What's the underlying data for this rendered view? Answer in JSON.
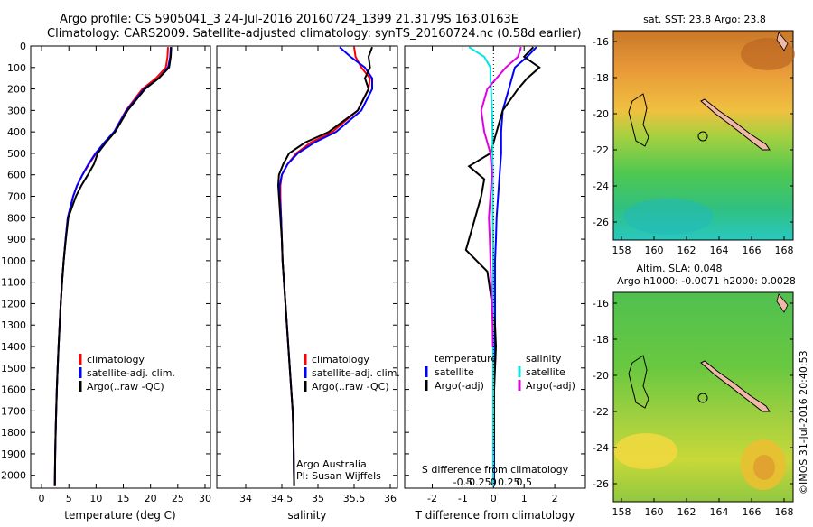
{
  "header": {
    "line1": "Argo profile: CS 5905041_3 24-Jul-2016 20160724_1399 21.3179S 163.0163E",
    "line2": "Climatology: CARS2009. Satellite-adjusted climatology: synTS_20160724.nc (0.58d earlier)"
  },
  "colors": {
    "climatology": "#ff0000",
    "satellite": "#0000ff",
    "argo": "#000000",
    "sal_satellite": "#00e5e5",
    "sal_argo": "#e000e0"
  },
  "chart_data": [
    {
      "type": "line",
      "xlabel": "temperature (deg C)",
      "xlim": [
        -2,
        31
      ],
      "xticks": [
        0,
        5,
        10,
        15,
        20,
        25,
        30
      ],
      "ylim": [
        2060,
        0
      ],
      "yticks": [
        0,
        100,
        200,
        300,
        400,
        500,
        600,
        700,
        800,
        900,
        1000,
        1100,
        1200,
        1300,
        1400,
        1500,
        1600,
        1700,
        1800,
        1900,
        2000
      ],
      "legend": [
        "climatology",
        "satellite-adj. clim.",
        "Argo(..raw -QC)"
      ],
      "series": [
        {
          "name": "climatology",
          "color": "#ff0000",
          "x": [
            23.2,
            23.1,
            22.8,
            21,
            18.5,
            15.5,
            13.3,
            11.6,
            10,
            8.7,
            7.5,
            6.5,
            5.8,
            5.3,
            4.8,
            4.4,
            4.05,
            3.75,
            3.5,
            3.3,
            3.1,
            2.95,
            2.8,
            2.68,
            2.58,
            2.5,
            2.42
          ],
          "y": [
            5,
            50,
            100,
            150,
            200,
            300,
            400,
            450,
            500,
            550,
            600,
            650,
            700,
            750,
            800,
            900,
            1000,
            1100,
            1200,
            1300,
            1400,
            1500,
            1600,
            1700,
            1800,
            1900,
            2050
          ]
        },
        {
          "name": "satellite-adj. clim.",
          "color": "#0000ff",
          "x": [
            23.7,
            23.6,
            23.2,
            21.5,
            18.8,
            15.6,
            13.3,
            11.5,
            9.9,
            8.6,
            7.5,
            6.5,
            5.8,
            5.3,
            4.8,
            4.4,
            4.05,
            3.75,
            3.5,
            3.3,
            3.1,
            2.95,
            2.8,
            2.68,
            2.58,
            2.5,
            2.42
          ],
          "y": [
            5,
            50,
            100,
            150,
            200,
            300,
            400,
            450,
            500,
            550,
            600,
            650,
            700,
            750,
            800,
            900,
            1000,
            1100,
            1200,
            1300,
            1400,
            1500,
            1600,
            1700,
            1800,
            1900,
            2050
          ]
        },
        {
          "name": "Argo(..raw -QC)",
          "color": "#000000",
          "x": [
            23.8,
            23.7,
            23.4,
            21.5,
            19,
            15.8,
            13.5,
            11.8,
            10.3,
            9.6,
            8.5,
            7.3,
            6.3,
            5.6,
            4.9,
            4.45,
            4.05,
            3.75,
            3.5,
            3.3,
            3.1,
            2.95,
            2.8,
            2.68,
            2.58,
            2.5,
            2.42
          ],
          "y": [
            5,
            50,
            100,
            150,
            200,
            300,
            400,
            450,
            500,
            550,
            600,
            650,
            700,
            750,
            800,
            900,
            1000,
            1100,
            1200,
            1300,
            1400,
            1500,
            1600,
            1700,
            1800,
            1900,
            2050
          ]
        }
      ]
    },
    {
      "type": "line",
      "xlabel": "salinity",
      "xlim": [
        33.6,
        36.1
      ],
      "xticks": [
        34,
        34.5,
        35,
        35.5,
        36
      ],
      "ylim": [
        2060,
        0
      ],
      "legend": [
        "climatology",
        "satellite-adj. clim.",
        "Argo(..raw -QC)"
      ],
      "annotation": [
        "Argo Australia",
        "PI: Susan Wijffels"
      ],
      "series": [
        {
          "name": "climatology",
          "color": "#ff0000",
          "x": [
            35.5,
            35.52,
            35.6,
            35.72,
            35.7,
            35.55,
            35.2,
            34.9,
            34.7,
            34.58,
            34.5,
            34.48,
            34.48,
            34.49,
            34.5,
            34.51,
            34.53,
            34.55,
            34.57,
            34.59,
            34.61,
            34.63,
            34.65,
            34.66,
            34.67
          ],
          "y": [
            5,
            50,
            100,
            150,
            200,
            300,
            400,
            450,
            500,
            550,
            600,
            650,
            700,
            800,
            900,
            1000,
            1100,
            1200,
            1300,
            1400,
            1500,
            1600,
            1700,
            1800,
            2050
          ]
        },
        {
          "name": "satellite-adj. clim.",
          "color": "#0000ff",
          "x": [
            35.3,
            35.45,
            35.65,
            35.75,
            35.75,
            35.6,
            35.25,
            34.95,
            34.72,
            34.58,
            34.5,
            34.47,
            34.47,
            34.49,
            34.5,
            34.51,
            34.53,
            34.55,
            34.57,
            34.59,
            34.61,
            34.63,
            34.65,
            34.66,
            34.67
          ],
          "y": [
            5,
            50,
            100,
            150,
            200,
            300,
            400,
            450,
            500,
            550,
            600,
            650,
            700,
            800,
            900,
            1000,
            1100,
            1200,
            1300,
            1400,
            1500,
            1600,
            1700,
            1800,
            2050
          ]
        },
        {
          "name": "Argo(..raw -QC)",
          "color": "#000000",
          "x": [
            35.75,
            35.7,
            35.72,
            35.65,
            35.7,
            35.55,
            35.15,
            34.82,
            34.6,
            34.52,
            34.46,
            34.45,
            34.46,
            34.48,
            34.5,
            34.51,
            34.53,
            34.55,
            34.57,
            34.59,
            34.61,
            34.63,
            34.65,
            34.66,
            34.67
          ],
          "y": [
            5,
            50,
            100,
            150,
            200,
            300,
            400,
            450,
            500,
            550,
            600,
            650,
            700,
            800,
            900,
            1000,
            1100,
            1200,
            1300,
            1400,
            1500,
            1600,
            1700,
            1800,
            2050
          ]
        }
      ]
    },
    {
      "type": "line",
      "xlabel": "T difference from climatology",
      "xlabel_top": "S difference from climatology",
      "xlim": [
        -2.9,
        3.0
      ],
      "xticks": [
        -2,
        -1,
        0,
        1,
        2
      ],
      "xticks_top": [
        "-0.5",
        "-0.25",
        "0",
        "0.25",
        "0.5"
      ],
      "ylim": [
        2060,
        0
      ],
      "legend_temperature_title": "temperature",
      "legend_salinity_title": "salinity",
      "legend_temperature": [
        "satellite",
        "Argo(-adj)"
      ],
      "legend_salinity": [
        "satellite",
        "Argo(-adj)"
      ],
      "series": [
        {
          "name": "T satellite",
          "color": "#0000ff",
          "x": [
            1.4,
            1.1,
            0.7,
            0.6,
            0.5,
            0.3,
            0.25,
            0.25,
            0.2,
            0.15,
            0.1,
            0.08,
            0.05,
            0.05,
            0.05,
            0.05,
            0.03,
            0.03,
            0.02,
            0.02,
            0.02,
            0.02,
            0.02
          ],
          "y": [
            5,
            50,
            100,
            150,
            200,
            300,
            400,
            500,
            600,
            700,
            800,
            900,
            1000,
            1100,
            1200,
            1300,
            1400,
            1500,
            1600,
            1700,
            1800,
            1900,
            2050
          ]
        },
        {
          "name": "T Argo(-adj)",
          "color": "#000000",
          "x": [
            1.3,
            1.0,
            1.5,
            1.1,
            0.8,
            0.3,
            0.1,
            -0.1,
            -0.8,
            -0.3,
            -0.4,
            -0.6,
            -0.9,
            -0.2,
            -0.05,
            0.05,
            0.08,
            0.05,
            0.02,
            0.02,
            0.02,
            0.01,
            0.01
          ],
          "y": [
            5,
            50,
            100,
            150,
            200,
            300,
            400,
            500,
            560,
            620,
            700,
            800,
            950,
            1050,
            1200,
            1300,
            1400,
            1500,
            1600,
            1700,
            1800,
            1900,
            2050
          ]
        },
        {
          "name": "S satellite",
          "color": "#00e5e5",
          "x": [
            -0.8,
            -0.3,
            -0.1,
            -0.1,
            -0.08,
            -0.05,
            -0.03,
            -0.03,
            -0.02,
            -0.02,
            -0.02,
            -0.01,
            -0.01,
            -0.01,
            -0.01,
            -0.01,
            -0.01,
            -0.01
          ],
          "y": [
            5,
            50,
            100,
            150,
            200,
            300,
            400,
            500,
            600,
            700,
            800,
            900,
            1000,
            1200,
            1400,
            1600,
            1800,
            2050
          ]
        },
        {
          "name": "S Argo(-adj)",
          "color": "#e000e0",
          "x": [
            0.9,
            0.8,
            0.4,
            -0.2,
            -0.4,
            -0.3,
            -0.1,
            -0.05,
            -0.1,
            -0.15,
            -0.12,
            -0.1,
            -0.08,
            -0.05,
            -0.03,
            -0.02
          ],
          "y": [
            5,
            50,
            100,
            200,
            300,
            400,
            500,
            600,
            700,
            800,
            900,
            1000,
            1100,
            1200,
            1300,
            1400
          ]
        }
      ]
    }
  ],
  "map_top": {
    "title": "sat. SST: 23.8  Argo: 23.8",
    "yticks": [
      "-16",
      "-18",
      "-20",
      "-22",
      "-24",
      "-26"
    ],
    "xticks": [
      "158",
      "160",
      "162",
      "164",
      "166",
      "168"
    ]
  },
  "map_bottom": {
    "title1": "Altim. SLA: 0.048",
    "title2": "Argo h1000: -0.0071 h2000: 0.0028",
    "yticks": [
      "-16",
      "-18",
      "-20",
      "-22",
      "-24",
      "-26"
    ],
    "xticks": [
      "158",
      "160",
      "162",
      "164",
      "166",
      "168"
    ]
  },
  "footer": "©IMOS 31-Jul-2016 20:40:53"
}
